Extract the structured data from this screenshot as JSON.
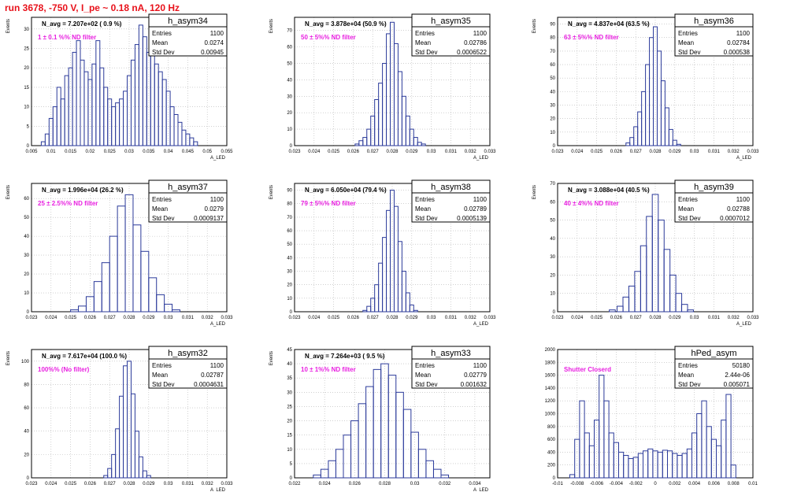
{
  "page_title": "run 3678,  -750 V, I_pe ~ 0.18 nA, 120 Hz",
  "colors": {
    "title": "#e8121b",
    "hist_line": "#2b3a9a",
    "annotation": "#e81fe0",
    "frame": "#000000",
    "grid": "#b5b5b5"
  },
  "chart_data": [
    {
      "type": "bar",
      "title": "h_asym34",
      "subtitle": "N_avg = 7.207e+02 ( 0.9 %)",
      "annotation": "1 ± 0.1 %% ND filter",
      "ylabel": "Events",
      "xlabel": "A_LED",
      "xlim": [
        0.005,
        0.055
      ],
      "ylim": [
        0,
        33
      ],
      "xticks": [
        "0.005",
        "0.01",
        "0.015",
        "0.02",
        "0.025",
        "0.03",
        "0.035",
        "0.04",
        "0.045",
        "0.05",
        "0.055"
      ],
      "yticks": [
        0,
        5,
        10,
        15,
        20,
        25,
        30
      ],
      "stats": {
        "entries": "1100",
        "mean": "0.0274",
        "std_dev": "0.00945"
      },
      "x": [
        0.008,
        0.009,
        0.01,
        0.011,
        0.012,
        0.013,
        0.014,
        0.015,
        0.016,
        0.017,
        0.018,
        0.019,
        0.02,
        0.021,
        0.022,
        0.023,
        0.024,
        0.025,
        0.026,
        0.027,
        0.028,
        0.029,
        0.03,
        0.031,
        0.032,
        0.033,
        0.034,
        0.035,
        0.036,
        0.037,
        0.038,
        0.039,
        0.04,
        0.041,
        0.042,
        0.043,
        0.044,
        0.045,
        0.046,
        0.047
      ],
      "values": [
        1,
        3,
        7,
        10,
        15,
        12,
        18,
        20,
        24,
        27,
        22,
        19,
        17,
        21,
        27,
        20,
        15,
        12,
        10,
        11,
        12,
        14,
        18,
        22,
        26,
        31,
        28,
        24,
        30,
        21,
        19,
        17,
        14,
        10,
        8,
        6,
        4,
        3,
        2,
        1
      ]
    },
    {
      "type": "bar",
      "title": "h_asym35",
      "subtitle": "N_avg = 3.878e+04 (50.9 %)",
      "annotation": "50 ± 5%% ND filter",
      "ylabel": "Events",
      "xlabel": "A_LED",
      "xlim": [
        0.023,
        0.033
      ],
      "ylim": [
        0,
        78
      ],
      "xticks": [
        "0.023",
        "0.024",
        "0.025",
        "0.026",
        "0.027",
        "0.028",
        "0.029",
        "0.03",
        "0.031",
        "0.032",
        "0.033"
      ],
      "yticks": [
        0,
        10,
        20,
        30,
        40,
        50,
        60,
        70
      ],
      "stats": {
        "entries": "1100",
        "mean": "0.02786",
        "std_dev": "0.0006522"
      },
      "x": [
        0.0262,
        0.0264,
        0.0266,
        0.0268,
        0.027,
        0.0272,
        0.0274,
        0.0276,
        0.0278,
        0.028,
        0.0282,
        0.0284,
        0.0286,
        0.0288,
        0.029,
        0.0292,
        0.0294,
        0.0296
      ],
      "values": [
        1,
        3,
        5,
        10,
        18,
        28,
        38,
        50,
        68,
        75,
        62,
        45,
        30,
        18,
        10,
        5,
        2,
        1
      ]
    },
    {
      "type": "bar",
      "title": "h_asym36",
      "subtitle": "N_avg = 4.837e+04 (63.5 %)",
      "annotation": "63 ± 5%% ND filter",
      "ylabel": "Events",
      "xlabel": "A_LED",
      "xlim": [
        0.023,
        0.033
      ],
      "ylim": [
        0,
        95
      ],
      "xticks": [
        "0.023",
        "0.024",
        "0.025",
        "0.026",
        "0.027",
        "0.028",
        "0.029",
        "0.03",
        "0.031",
        "0.032",
        "0.033"
      ],
      "yticks": [
        0,
        10,
        20,
        30,
        40,
        50,
        60,
        70,
        80,
        90
      ],
      "stats": {
        "entries": "1100",
        "mean": "0.02784",
        "std_dev": "0.000538"
      },
      "x": [
        0.0266,
        0.0268,
        0.027,
        0.0272,
        0.0274,
        0.0276,
        0.0278,
        0.028,
        0.0282,
        0.0284,
        0.0286,
        0.0288,
        0.029,
        0.0292
      ],
      "values": [
        2,
        6,
        14,
        25,
        40,
        60,
        80,
        88,
        70,
        48,
        28,
        12,
        4,
        1
      ]
    },
    {
      "type": "bar",
      "title": "h_asym37",
      "subtitle": "N_avg = 1.996e+04 (26.2 %)",
      "annotation": "25 ± 2.5%% ND filter",
      "ylabel": "Events",
      "xlabel": "A_LED",
      "xlim": [
        0.023,
        0.033
      ],
      "ylim": [
        0,
        68
      ],
      "xticks": [
        "0.023",
        "0.024",
        "0.025",
        "0.026",
        "0.027",
        "0.028",
        "0.029",
        "0.03",
        "0.031",
        "0.032",
        "0.033"
      ],
      "yticks": [
        0,
        10,
        20,
        30,
        40,
        50,
        60
      ],
      "stats": {
        "entries": "1100",
        "mean": "0.0279",
        "std_dev": "0.0009137"
      },
      "x": [
        0.0252,
        0.0256,
        0.026,
        0.0264,
        0.0268,
        0.0272,
        0.0276,
        0.028,
        0.0284,
        0.0288,
        0.0292,
        0.0296,
        0.03,
        0.0304
      ],
      "values": [
        1,
        3,
        8,
        16,
        26,
        40,
        56,
        62,
        46,
        32,
        18,
        9,
        4,
        1
      ]
    },
    {
      "type": "bar",
      "title": "h_asym38",
      "subtitle": "N_avg = 6.050e+04 (79.4 %)",
      "annotation": "79 ± 5%% ND filter",
      "ylabel": "Events",
      "xlabel": "A_LED",
      "xlim": [
        0.023,
        0.033
      ],
      "ylim": [
        0,
        95
      ],
      "xticks": [
        "0.023",
        "0.024",
        "0.025",
        "0.026",
        "0.027",
        "0.028",
        "0.029",
        "0.03",
        "0.031",
        "0.032",
        "0.033"
      ],
      "yticks": [
        0,
        10,
        20,
        30,
        40,
        50,
        60,
        70,
        80,
        90
      ],
      "stats": {
        "entries": "1100",
        "mean": "0.02789",
        "std_dev": "0.0005139"
      },
      "x": [
        0.0266,
        0.0268,
        0.027,
        0.0272,
        0.0274,
        0.0276,
        0.0278,
        0.028,
        0.0282,
        0.0284,
        0.0286,
        0.0288,
        0.029,
        0.0292
      ],
      "values": [
        1,
        4,
        10,
        20,
        36,
        55,
        75,
        90,
        78,
        52,
        30,
        14,
        5,
        1
      ]
    },
    {
      "type": "bar",
      "title": "h_asym39",
      "subtitle": "N_avg = 3.088e+04 (40.5 %)",
      "annotation": "40 ± 4%% ND filter",
      "ylabel": "Events",
      "xlabel": "A_LED",
      "xlim": [
        0.023,
        0.033
      ],
      "ylim": [
        0,
        70
      ],
      "xticks": [
        "0.023",
        "0.024",
        "0.025",
        "0.026",
        "0.027",
        "0.028",
        "0.029",
        "0.03",
        "0.031",
        "0.032",
        "0.033"
      ],
      "yticks": [
        0,
        10,
        20,
        30,
        40,
        50,
        60,
        70
      ],
      "stats": {
        "entries": "1100",
        "mean": "0.02788",
        "std_dev": "0.0007012"
      },
      "x": [
        0.0258,
        0.0262,
        0.0265,
        0.0268,
        0.0271,
        0.0274,
        0.0277,
        0.028,
        0.0283,
        0.0286,
        0.0289,
        0.0292,
        0.0295,
        0.0298
      ],
      "values": [
        1,
        3,
        8,
        14,
        22,
        36,
        52,
        64,
        50,
        34,
        20,
        10,
        4,
        1
      ]
    },
    {
      "type": "bar",
      "title": "h_asym32",
      "subtitle": "N_avg = 7.617e+04 (100.0 %)",
      "annotation": "100%% (No filter)",
      "ylabel": "Events",
      "xlabel": "A_LED",
      "xlim": [
        0.023,
        0.033
      ],
      "ylim": [
        0,
        110
      ],
      "xticks": [
        "0.023",
        "0.024",
        "0.025",
        "0.026",
        "0.027",
        "0.028",
        "0.029",
        "0.03",
        "0.031",
        "0.032",
        "0.033"
      ],
      "yticks": [
        0,
        20,
        40,
        60,
        80,
        100
      ],
      "stats": {
        "entries": "1100",
        "mean": "0.02787",
        "std_dev": "0.0004631"
      },
      "x": [
        0.0268,
        0.027,
        0.0272,
        0.0274,
        0.0276,
        0.0278,
        0.028,
        0.0282,
        0.0284,
        0.0286,
        0.0288,
        0.029
      ],
      "values": [
        2,
        8,
        20,
        42,
        70,
        96,
        100,
        72,
        40,
        18,
        6,
        2
      ]
    },
    {
      "type": "bar",
      "title": "h_asym33",
      "subtitle": "N_avg = 7.264e+03 ( 9.5 %)",
      "annotation": "10 ± 1%% ND filter",
      "ylabel": "Events",
      "xlabel": "A_LED",
      "xlim": [
        0.022,
        0.035
      ],
      "ylim": [
        0,
        45
      ],
      "xticks": [
        "0.022",
        "0.024",
        "0.026",
        "0.028",
        "0.03",
        "0.032",
        "0.034"
      ],
      "yticks": [
        0,
        5,
        10,
        15,
        20,
        25,
        30,
        35,
        40,
        45
      ],
      "stats": {
        "entries": "1100",
        "mean": "0.02779",
        "std_dev": "0.001632"
      },
      "x": [
        0.0235,
        0.024,
        0.0245,
        0.025,
        0.0255,
        0.026,
        0.0265,
        0.027,
        0.0275,
        0.028,
        0.0285,
        0.029,
        0.0295,
        0.03,
        0.0305,
        0.031,
        0.0315,
        0.032
      ],
      "values": [
        1,
        3,
        6,
        10,
        15,
        20,
        26,
        32,
        38,
        40,
        36,
        30,
        24,
        16,
        10,
        6,
        3,
        1
      ]
    },
    {
      "type": "bar",
      "title": "hPed_asym",
      "subtitle": "",
      "annotation": "Shutter Closerd",
      "ylabel": "",
      "xlabel": "",
      "xlim": [
        -0.01,
        0.01
      ],
      "ylim": [
        0,
        2000
      ],
      "xticks": [
        "-0.01",
        "-0.008",
        "-0.006",
        "-0.004",
        "-0.002",
        "0",
        "0.002",
        "0.004",
        "0.006",
        "0.008",
        "0.01"
      ],
      "yticks": [
        0,
        200,
        400,
        600,
        800,
        1000,
        1200,
        1400,
        1600,
        1800,
        2000
      ],
      "stats": {
        "entries": "50180",
        "mean": "2.44e-06",
        "std_dev": "0.005071"
      },
      "x": [
        -0.0085,
        -0.008,
        -0.0075,
        -0.007,
        -0.0065,
        -0.006,
        -0.0055,
        -0.005,
        -0.0045,
        -0.004,
        -0.0035,
        -0.003,
        -0.0025,
        -0.002,
        -0.0015,
        -0.001,
        -0.0005,
        0,
        0.0005,
        0.001,
        0.0015,
        0.002,
        0.0025,
        0.003,
        0.0035,
        0.004,
        0.0045,
        0.005,
        0.0055,
        0.006,
        0.0065,
        0.007,
        0.0075,
        0.008
      ],
      "values": [
        50,
        600,
        1200,
        700,
        500,
        900,
        1600,
        1200,
        700,
        550,
        400,
        350,
        300,
        320,
        380,
        420,
        450,
        420,
        400,
        430,
        420,
        380,
        350,
        380,
        450,
        700,
        1000,
        1200,
        800,
        600,
        500,
        900,
        1300,
        200
      ]
    }
  ]
}
